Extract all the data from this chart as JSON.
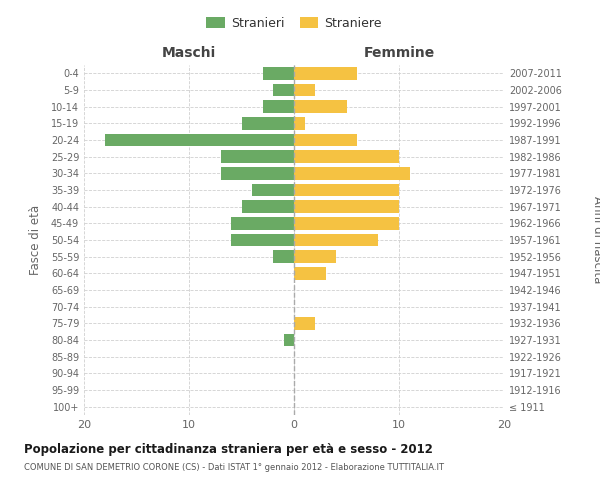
{
  "age_groups": [
    "100+",
    "95-99",
    "90-94",
    "85-89",
    "80-84",
    "75-79",
    "70-74",
    "65-69",
    "60-64",
    "55-59",
    "50-54",
    "45-49",
    "40-44",
    "35-39",
    "30-34",
    "25-29",
    "20-24",
    "15-19",
    "10-14",
    "5-9",
    "0-4"
  ],
  "birth_years": [
    "≤ 1911",
    "1912-1916",
    "1917-1921",
    "1922-1926",
    "1927-1931",
    "1932-1936",
    "1937-1941",
    "1942-1946",
    "1947-1951",
    "1952-1956",
    "1957-1961",
    "1962-1966",
    "1967-1971",
    "1972-1976",
    "1977-1981",
    "1982-1986",
    "1987-1991",
    "1992-1996",
    "1997-2001",
    "2002-2006",
    "2007-2011"
  ],
  "maschi": [
    0,
    0,
    0,
    0,
    1,
    0,
    0,
    0,
    0,
    2,
    6,
    6,
    5,
    4,
    7,
    7,
    18,
    5,
    3,
    2,
    3
  ],
  "femmine": [
    0,
    0,
    0,
    0,
    0,
    2,
    0,
    0,
    3,
    4,
    8,
    10,
    10,
    10,
    11,
    10,
    6,
    1,
    5,
    2,
    6
  ],
  "color_maschi": "#6aaa64",
  "color_femmine": "#f5c242",
  "title_main": "Popolazione per cittadinanza straniera per età e sesso - 2012",
  "title_sub": "COMUNE DI SAN DEMETRIO CORONE (CS) - Dati ISTAT 1° gennaio 2012 - Elaborazione TUTTITALIA.IT",
  "xlabel_left": "Maschi",
  "xlabel_right": "Femmine",
  "ylabel_left": "Fasce di età",
  "ylabel_right": "Anni di nascita",
  "legend_maschi": "Stranieri",
  "legend_femmine": "Straniere",
  "xlim": 20,
  "background_color": "#ffffff",
  "grid_color": "#d0d0d0",
  "label_color": "#666666",
  "header_color": "#444444"
}
